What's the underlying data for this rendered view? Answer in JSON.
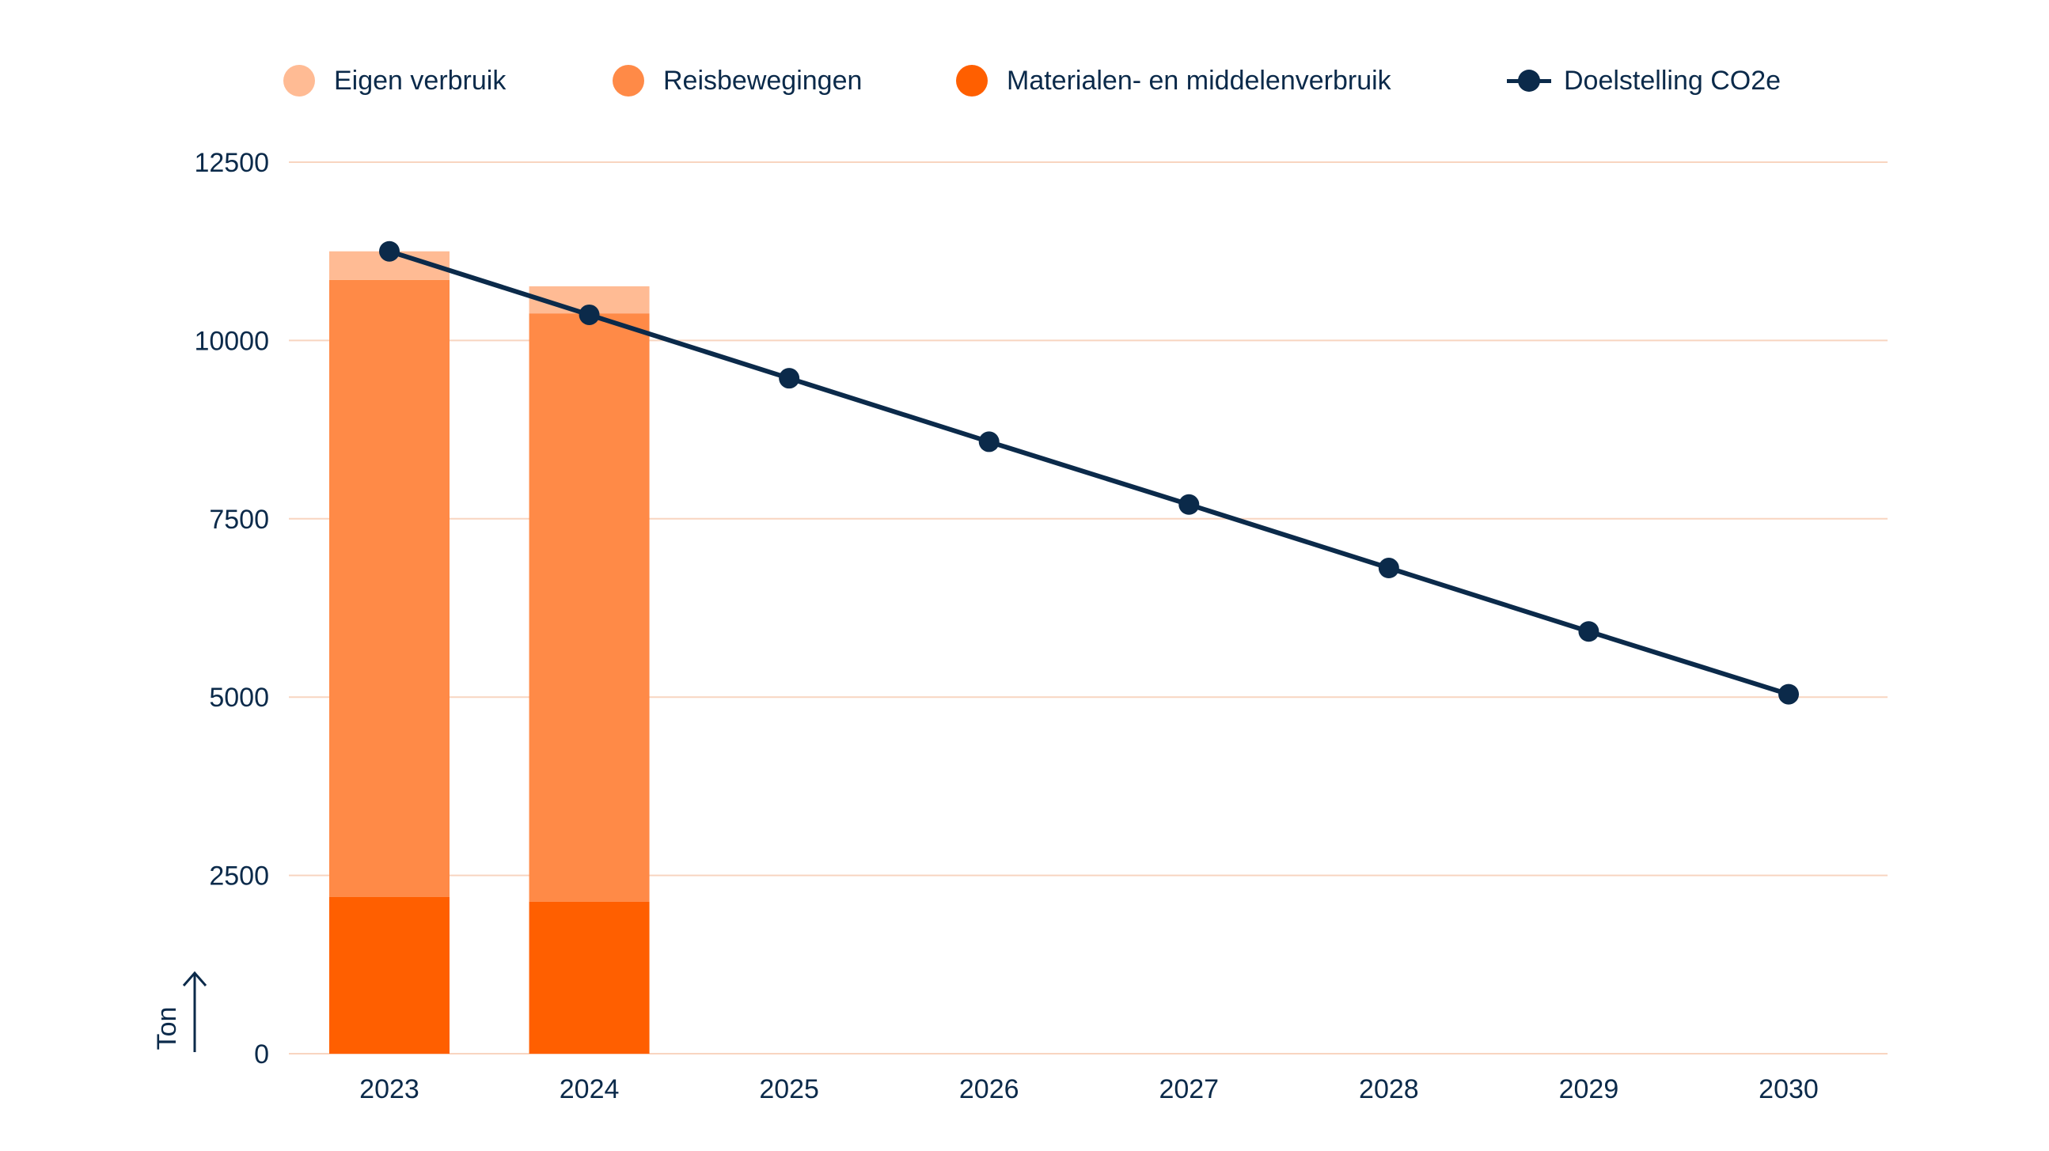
{
  "chart_data": {
    "type": "bar",
    "title": "",
    "xlabel": "",
    "ylabel": "Ton",
    "ylim": [
      0,
      12500
    ],
    "yticks": [
      0,
      2500,
      5000,
      7500,
      10000,
      12500
    ],
    "categories": [
      "2023",
      "2024",
      "2025",
      "2026",
      "2027",
      "2028",
      "2029",
      "2030"
    ],
    "stacked": true,
    "series": [
      {
        "name": "Materialen- en middelenverbruik",
        "type": "bar",
        "color": "#ff5f00",
        "values": [
          2200,
          2130,
          null,
          null,
          null,
          null,
          null,
          null
        ]
      },
      {
        "name": "Reisbewegingen",
        "type": "bar",
        "color": "#ff8a47",
        "values": [
          8650,
          8250,
          null,
          null,
          null,
          null,
          null,
          null
        ]
      },
      {
        "name": "Eigen verbruik",
        "type": "bar",
        "color": "#ffbb94",
        "values": [
          400,
          380,
          null,
          null,
          null,
          null,
          null,
          null
        ]
      },
      {
        "name": "Doelstelling CO2e",
        "type": "line",
        "color": "#0b2a4a",
        "values": [
          11250,
          10360,
          9470,
          8580,
          7700,
          6810,
          5920,
          5040
        ]
      }
    ],
    "legend": [
      {
        "name": "Eigen verbruik",
        "kind": "dot",
        "color": "#ffbb94"
      },
      {
        "name": "Reisbewegingen",
        "kind": "dot",
        "color": "#ff8a47"
      },
      {
        "name": "Materialen- en middelenverbruik",
        "kind": "dot",
        "color": "#ff5f00"
      },
      {
        "name": "Doelstelling CO2e",
        "kind": "line",
        "color": "#0b2a4a"
      }
    ],
    "grid_color": "#f8d5c0",
    "legend_position": "top"
  }
}
